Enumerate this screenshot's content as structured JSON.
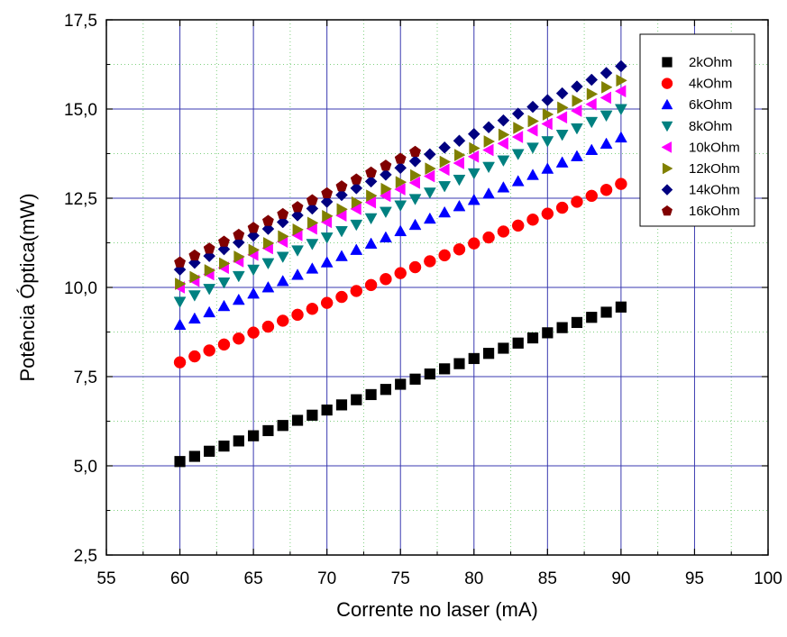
{
  "chart_data": {
    "type": "scatter",
    "title": "",
    "xlabel": "Corrente no laser (mA)",
    "ylabel": "Potência Óptica(mW)",
    "xlim": [
      55,
      100
    ],
    "ylim": [
      2.5,
      17.5
    ],
    "x_ticks": [
      "55",
      "60",
      "65",
      "70",
      "75",
      "80",
      "85",
      "90",
      "95",
      "100"
    ],
    "y_ticks": [
      "2,5",
      "5,0",
      "7,5",
      "10,0",
      "12,5",
      "15,0",
      "17,5"
    ],
    "grid": true,
    "legend_position": "top-right",
    "series": [
      {
        "name": "2kOhm",
        "marker": "square",
        "color": "#000000",
        "x_start": 60,
        "x_end": 90,
        "y_start": 5.12,
        "y_end": 9.45
      },
      {
        "name": "4kOhm",
        "marker": "circle",
        "color": "#ff0000",
        "x_start": 60,
        "x_end": 90,
        "y_start": 7.9,
        "y_end": 12.9
      },
      {
        "name": "6kOhm",
        "marker": "triangle-up",
        "color": "#0000ff",
        "x_start": 60,
        "x_end": 90,
        "y_start": 8.95,
        "y_end": 14.2
      },
      {
        "name": "8kOhm",
        "marker": "triangle-down",
        "color": "#008080",
        "x_start": 60,
        "x_end": 90,
        "y_start": 9.6,
        "y_end": 15.0
      },
      {
        "name": "10kOhm",
        "marker": "triangle-left",
        "color": "#ff00ff",
        "x_start": 60,
        "x_end": 90,
        "y_start": 10.0,
        "y_end": 15.5
      },
      {
        "name": "12kOhm",
        "marker": "triangle-right",
        "color": "#808000",
        "x_start": 60,
        "x_end": 90,
        "y_start": 10.1,
        "y_end": 15.8
      },
      {
        "name": "14kOhm",
        "marker": "diamond",
        "color": "#000080",
        "x_start": 60,
        "x_end": 90,
        "y_start": 10.5,
        "y_end": 16.2
      },
      {
        "name": "16kOhm",
        "marker": "pentagon",
        "color": "#800000",
        "x_start": 60,
        "x_end": 76,
        "y_start": 10.7,
        "y_end": 13.8
      }
    ]
  }
}
